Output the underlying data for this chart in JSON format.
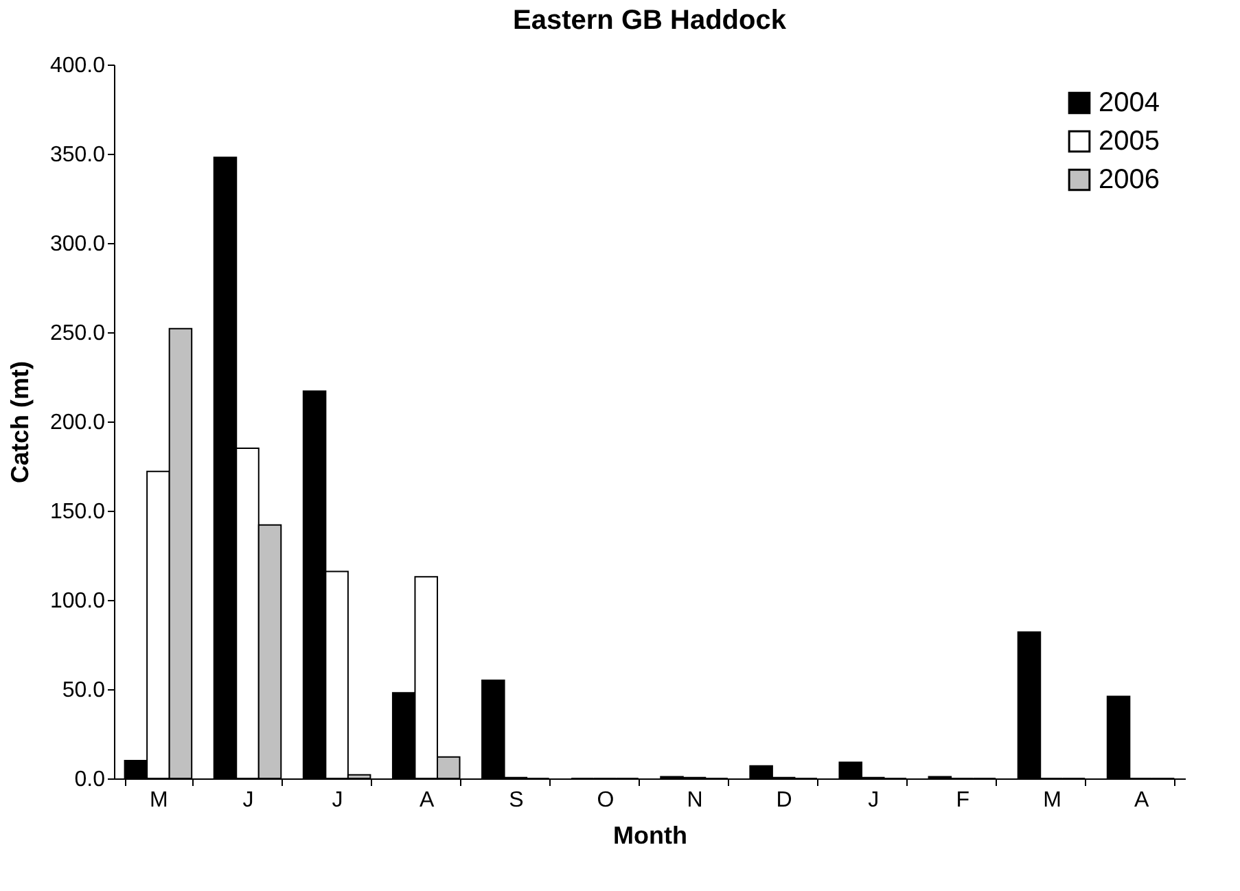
{
  "chart_data": {
    "type": "bar",
    "title": "Eastern GB Haddock",
    "xlabel": "Month",
    "ylabel": "Catch (mt)",
    "categories": [
      "M",
      "J",
      "J",
      "A",
      "S",
      "O",
      "N",
      "D",
      "J",
      "F",
      "M",
      "A"
    ],
    "series": [
      {
        "name": "2004",
        "color": "#000000",
        "values": [
          10,
          348,
          217,
          48,
          55,
          0,
          1,
          7,
          9,
          1,
          82,
          46
        ]
      },
      {
        "name": "2005",
        "color": "#ffffff",
        "values": [
          172,
          185,
          116,
          113,
          0.5,
          0,
          0.5,
          0.5,
          0.5,
          0,
          0,
          0
        ]
      },
      {
        "name": "2006",
        "color": "#c0c0c0",
        "values": [
          252,
          142,
          2,
          12,
          0,
          0,
          0,
          0,
          0,
          0,
          0,
          0
        ]
      }
    ],
    "ylim": [
      0,
      400
    ],
    "yticks": [
      {
        "value": 0,
        "label": "0.0"
      },
      {
        "value": 50,
        "label": "50.0"
      },
      {
        "value": 100,
        "label": "100.0"
      },
      {
        "value": 150,
        "label": "150.0"
      },
      {
        "value": 200,
        "label": "200.0"
      },
      {
        "value": 250,
        "label": "250.0"
      },
      {
        "value": 300,
        "label": "300.0"
      },
      {
        "value": 350,
        "label": "350.0"
      },
      {
        "value": 400,
        "label": "400.0"
      }
    ],
    "grid": false,
    "legend": "top right"
  }
}
